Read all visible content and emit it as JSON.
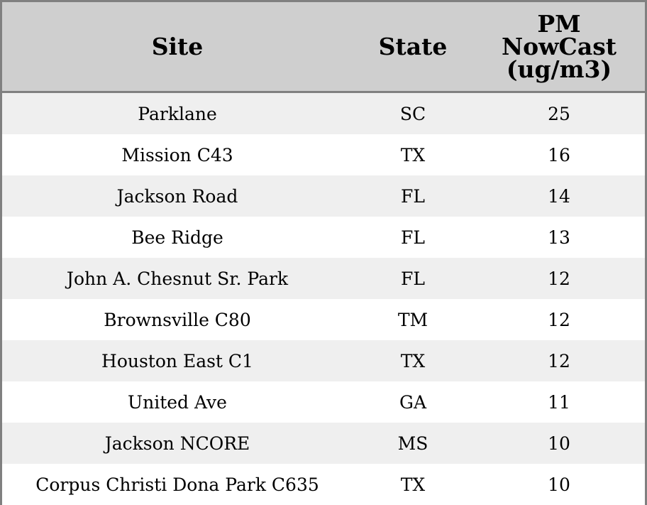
{
  "table": {
    "headers": {
      "site": "Site",
      "state": "State",
      "value_line1": "PM",
      "value_line2": "NowCast",
      "value_line3": "(ug/m3)"
    },
    "rows": [
      {
        "site": "Parklane",
        "state": "SC",
        "value": "25"
      },
      {
        "site": "Mission C43",
        "state": "TX",
        "value": "16"
      },
      {
        "site": "Jackson Road",
        "state": "FL",
        "value": "14"
      },
      {
        "site": "Bee Ridge",
        "state": "FL",
        "value": "13"
      },
      {
        "site": "John A. Chesnut Sr. Park",
        "state": "FL",
        "value": "12"
      },
      {
        "site": "Brownsville C80",
        "state": "TM",
        "value": "12"
      },
      {
        "site": "Houston East C1",
        "state": "TX",
        "value": "12"
      },
      {
        "site": "United Ave",
        "state": "GA",
        "value": "11"
      },
      {
        "site": "Jackson NCORE",
        "state": "MS",
        "value": "10"
      },
      {
        "site": "Corpus Christi Dona Park C635",
        "state": "TX",
        "value": "10"
      }
    ]
  },
  "colors": {
    "header_bg": "#cfcfcf",
    "row_shade": "#efefef",
    "row_plain": "#ffffff",
    "border": "#808080"
  }
}
